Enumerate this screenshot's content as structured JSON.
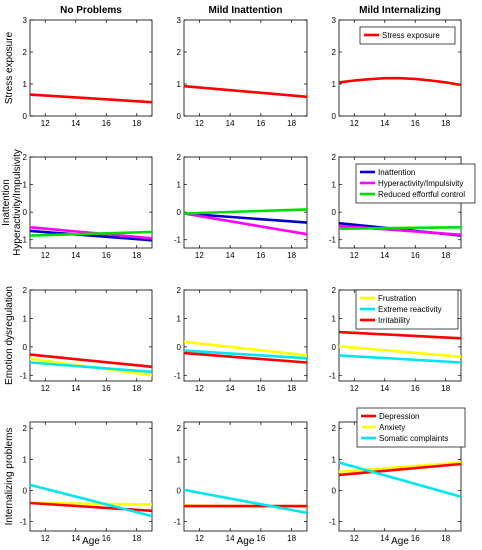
{
  "chart_data": {
    "type": "line",
    "column_titles": [
      "No Problems",
      "Mild Inattention",
      "Mild Internalizing"
    ],
    "xlabel": "Age",
    "xlim": [
      11,
      19
    ],
    "xticks": [
      12,
      14,
      16,
      18
    ],
    "rows": [
      {
        "ylabel": [
          "Stress exposure"
        ],
        "ylim": [
          0,
          3
        ],
        "yticks": [
          0,
          1,
          2,
          3
        ],
        "legend": [
          {
            "name": "Stress exposure",
            "color": "#ff0000"
          }
        ],
        "panels": [
          {
            "series": [
              {
                "color": "#ff0000",
                "x": [
                  11,
                  19
                ],
                "y": [
                  0.67,
                  0.43
                ]
              }
            ]
          },
          {
            "series": [
              {
                "color": "#ff0000",
                "x": [
                  11,
                  19
                ],
                "y": [
                  0.93,
                  0.6
                ]
              }
            ]
          },
          {
            "series": [
              {
                "color": "#ff0000",
                "x": [
                  11,
                  12,
                  13,
                  14,
                  15,
                  16,
                  17,
                  18,
                  19
                ],
                "y": [
                  1.05,
                  1.11,
                  1.15,
                  1.18,
                  1.18,
                  1.16,
                  1.11,
                  1.05,
                  0.97
                ]
              }
            ]
          }
        ]
      },
      {
        "ylabel": [
          "Inattention",
          "Hyperactivity/Impulsivity"
        ],
        "ylim": [
          -1.3,
          2
        ],
        "yticks": [
          -1,
          0,
          1,
          2
        ],
        "legend": [
          {
            "name": "Inattention",
            "color": "#0000cc"
          },
          {
            "name": "Hyperactivity/Impulsivity",
            "color": "#ff00ff"
          },
          {
            "name": "Reduced effortful control",
            "color": "#00dd00"
          }
        ],
        "panels": [
          {
            "series": [
              {
                "color": "#0000cc",
                "x": [
                  11,
                  19
                ],
                "y": [
                  -0.68,
                  -1.02
                ]
              },
              {
                "color": "#ff00ff",
                "x": [
                  11,
                  19
                ],
                "y": [
                  -0.55,
                  -0.95
                ]
              },
              {
                "color": "#00dd00",
                "x": [
                  11,
                  19
                ],
                "y": [
                  -0.85,
                  -0.72
                ]
              }
            ]
          },
          {
            "series": [
              {
                "color": "#0000cc",
                "x": [
                  11,
                  19
                ],
                "y": [
                  -0.05,
                  -0.38
                ]
              },
              {
                "color": "#ff00ff",
                "x": [
                  11,
                  19
                ],
                "y": [
                  -0.05,
                  -0.8
                ]
              },
              {
                "color": "#00dd00",
                "x": [
                  11,
                  19
                ],
                "y": [
                  -0.05,
                  0.1
                ]
              }
            ]
          },
          {
            "series": [
              {
                "color": "#0000cc",
                "x": [
                  11,
                  19
                ],
                "y": [
                  -0.4,
                  -0.85
                ]
              },
              {
                "color": "#ff00ff",
                "x": [
                  11,
                  19
                ],
                "y": [
                  -0.5,
                  -0.82
                ]
              },
              {
                "color": "#00dd00",
                "x": [
                  11,
                  19
                ],
                "y": [
                  -0.6,
                  -0.55
                ]
              }
            ]
          }
        ]
      },
      {
        "ylabel": [
          "Emotion dysregulation"
        ],
        "ylim": [
          -1.2,
          2
        ],
        "yticks": [
          -1,
          0,
          1,
          2
        ],
        "legend": [
          {
            "name": "Frustration",
            "color": "#ffff00"
          },
          {
            "name": "Extreme reactivity",
            "color": "#00e5ee"
          },
          {
            "name": "Irritability",
            "color": "#ff0000"
          }
        ],
        "panels": [
          {
            "series": [
              {
                "color": "#ffff00",
                "x": [
                  11,
                  19
                ],
                "y": [
                  -0.42,
                  -1.0
                ]
              },
              {
                "color": "#00e5ee",
                "x": [
                  11,
                  19
                ],
                "y": [
                  -0.55,
                  -0.88
                ]
              },
              {
                "color": "#ff0000",
                "x": [
                  11,
                  19
                ],
                "y": [
                  -0.27,
                  -0.7
                ]
              }
            ]
          },
          {
            "series": [
              {
                "color": "#ffff00",
                "x": [
                  11,
                  19
                ],
                "y": [
                  0.18,
                  -0.3
                ]
              },
              {
                "color": "#00e5ee",
                "x": [
                  11,
                  19
                ],
                "y": [
                  -0.13,
                  -0.4
                ]
              },
              {
                "color": "#ff0000",
                "x": [
                  11,
                  19
                ],
                "y": [
                  -0.22,
                  -0.55
                ]
              }
            ]
          },
          {
            "series": [
              {
                "color": "#ffff00",
                "x": [
                  11,
                  19
                ],
                "y": [
                  0.02,
                  -0.35
                ]
              },
              {
                "color": "#00e5ee",
                "x": [
                  11,
                  19
                ],
                "y": [
                  -0.3,
                  -0.55
                ]
              },
              {
                "color": "#ff0000",
                "x": [
                  11,
                  19
                ],
                "y": [
                  0.52,
                  0.3
                ]
              }
            ]
          }
        ]
      },
      {
        "ylabel": [
          "Internalizing problems"
        ],
        "ylim": [
          -1.3,
          2.2
        ],
        "yticks": [
          -1,
          0,
          1,
          2
        ],
        "legend": [
          {
            "name": "Depression",
            "color": "#ff0000"
          },
          {
            "name": "Anxiety",
            "color": "#ffff00"
          },
          {
            "name": "Somatic complaints",
            "color": "#00e5ee"
          }
        ],
        "panels": [
          {
            "series": [
              {
                "color": "#ffff00",
                "x": [
                  11,
                  19
                ],
                "y": [
                  -0.4,
                  -0.45
                ]
              },
              {
                "color": "#ff0000",
                "x": [
                  11,
                  19
                ],
                "y": [
                  -0.4,
                  -0.65
                ]
              },
              {
                "color": "#00e5ee",
                "x": [
                  11,
                  19
                ],
                "y": [
                  0.18,
                  -0.82
                ]
              }
            ]
          },
          {
            "series": [
              {
                "color": "#ffff00",
                "x": [
                  11,
                  19
                ],
                "y": [
                  -0.48,
                  -0.52
                ]
              },
              {
                "color": "#ff0000",
                "x": [
                  11,
                  19
                ],
                "y": [
                  -0.5,
                  -0.5
                ]
              },
              {
                "color": "#00e5ee",
                "x": [
                  11,
                  19
                ],
                "y": [
                  0.02,
                  -0.72
                ]
              }
            ]
          },
          {
            "series": [
              {
                "color": "#ffff00",
                "x": [
                  11,
                  19
                ],
                "y": [
                  0.6,
                  0.9
                ]
              },
              {
                "color": "#ff0000",
                "x": [
                  11,
                  19
                ],
                "y": [
                  0.5,
                  0.85
                ]
              },
              {
                "color": "#00e5ee",
                "x": [
                  11,
                  19
                ],
                "y": [
                  0.9,
                  -0.2
                ]
              }
            ]
          }
        ]
      }
    ]
  }
}
